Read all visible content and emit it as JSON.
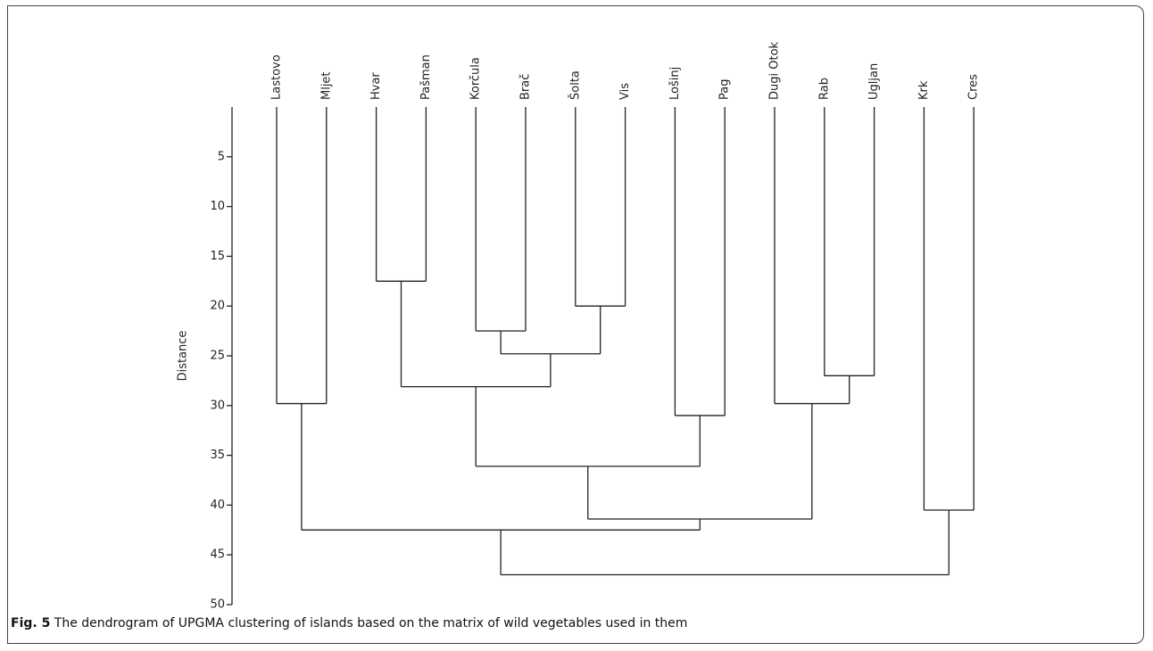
{
  "chart_data": {
    "type": "dendrogram",
    "y_label": "Distance",
    "ylim": [
      0,
      50
    ],
    "yticks": [
      5,
      10,
      15,
      20,
      25,
      30,
      35,
      40,
      45,
      50
    ],
    "color": "#222222",
    "tree": {
      "height": 47,
      "children": [
        {
          "height": 42.5,
          "children": [
            {
              "height": 29.8,
              "children": [
                "Lastovo",
                "Mljet"
              ]
            },
            {
              "height": 41.4,
              "children": [
                {
                  "height": 36.1,
                  "children": [
                    {
                      "height": 28.1,
                      "children": [
                        {
                          "height": 17.5,
                          "children": [
                            "Hvar",
                            "Pašman"
                          ]
                        },
                        {
                          "height": 24.8,
                          "children": [
                            {
                              "height": 22.5,
                              "children": [
                                "Korčula",
                                "Brač"
                              ]
                            },
                            {
                              "height": 20,
                              "children": [
                                "Šolta",
                                "Vis"
                              ]
                            }
                          ]
                        }
                      ]
                    },
                    {
                      "height": 31,
                      "children": [
                        "Lošinj",
                        "Pag"
                      ]
                    }
                  ]
                },
                {
                  "height": 29.8,
                  "children": [
                    "Dugi Otok",
                    {
                      "height": 27,
                      "children": [
                        "Rab",
                        "Ugljan"
                      ]
                    }
                  ]
                }
              ]
            }
          ]
        },
        {
          "height": 40.5,
          "children": [
            "Krk",
            "Cres"
          ]
        }
      ]
    }
  },
  "caption": {
    "label": "Fig. 5",
    "text": "The dendrogram of UPGMA clustering of islands based on the matrix of wild vegetables used in them"
  }
}
